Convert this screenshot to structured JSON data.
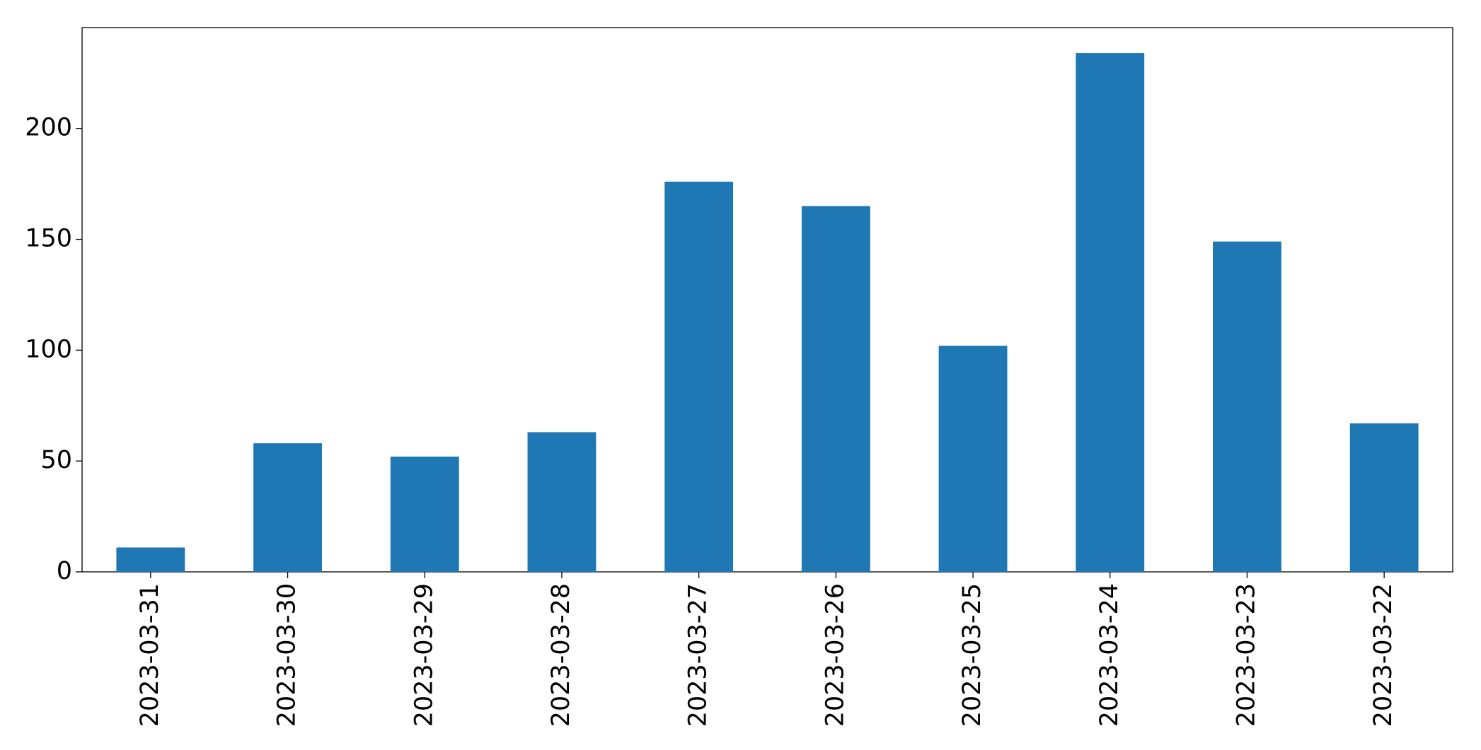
{
  "chart_data": {
    "type": "bar",
    "categories": [
      "2023-03-31",
      "2023-03-30",
      "2023-03-29",
      "2023-03-28",
      "2023-03-27",
      "2023-03-26",
      "2023-03-25",
      "2023-03-24",
      "2023-03-23",
      "2023-03-22"
    ],
    "values": [
      11,
      58,
      52,
      63,
      176,
      165,
      102,
      234,
      149,
      67
    ],
    "color": "#1f77b4",
    "ylim": [
      0,
      245.5
    ],
    "yticks": [
      0,
      50,
      100,
      150,
      200
    ],
    "grid": false
  }
}
